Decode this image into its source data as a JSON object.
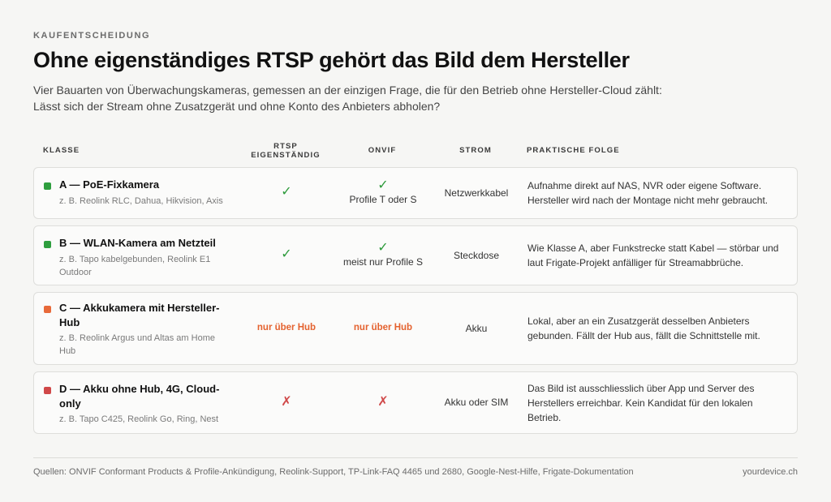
{
  "kicker": "KAUFENTSCHEIDUNG",
  "title": "Ohne eigenständiges RTSP gehört das Bild dem Hersteller",
  "subtitle": "Vier Bauarten von Überwachungskameras, gemessen an der einzigen Frage, die für den Betrieb ohne Hersteller-Cloud zählt: Lässt sich der Stream ohne Zusatzgerät und ohne Konto des Anbieters abholen?",
  "columns": {
    "klasse": "KLASSE",
    "rtsp": "RTSP EIGENSTÄNDIG",
    "onvif": "ONVIF",
    "strom": "STROM",
    "folge": "PRAKTISCHE FOLGE"
  },
  "rows": [
    {
      "status_color": "#2e9e3e",
      "title": "A — PoE-Fixkamera",
      "examples": "z. B. Reolink RLC, Dahua, Hikvision, Axis",
      "rtsp": "✓",
      "onvif": "✓",
      "onvif_note": "Profile T oder S",
      "strom": "Netzwerkkabel",
      "folge": "Aufnahme direkt auf NAS, NVR oder eigene Software. Hersteller wird nach der Montage nicht mehr gebraucht."
    },
    {
      "status_color": "#2e9e3e",
      "title": "B — WLAN-Kamera am Netzteil",
      "examples": "z. B. Tapo kabelgebunden, Reolink E1 Outdoor",
      "rtsp": "✓",
      "onvif": "✓",
      "onvif_note": "meist nur Profile S",
      "strom": "Steckdose",
      "folge": "Wie Klasse A, aber Funkstrecke statt Kabel — störbar und laut Frigate-Projekt anfälliger für Streamabbrüche."
    },
    {
      "status_color": "#e86a3a",
      "title": "C — Akkukamera mit Hersteller-Hub",
      "examples": "z. B. Reolink Argus und Altas am Home Hub",
      "rtsp": "nur über Hub",
      "onvif": "nur über Hub",
      "onvif_note": "",
      "strom": "Akku",
      "folge": "Lokal, aber an ein Zusatzgerät desselben Anbieters gebunden. Fällt der Hub aus, fällt die Schnittstelle mit."
    },
    {
      "status_color": "#d04848",
      "title": "D — Akku ohne Hub, 4G, Cloud-only",
      "examples": "z. B. Tapo C425, Reolink Go, Ring, Nest",
      "rtsp": "✗",
      "onvif": "✗",
      "onvif_note": "",
      "strom": "Akku oder SIM",
      "folge": "Das Bild ist ausschliesslich über App und Server des Herstellers erreichbar. Kein Kandidat für den lokalen Betrieb."
    }
  ],
  "footer": {
    "sources": "Quellen: ONVIF Conformant Products & Profile-Ankündigung, Reolink-Support, TP-Link-FAQ 4465 und 2680, Google-Nest-Hilfe, Frigate-Dokumentation",
    "brand": "yourdevice.ch"
  }
}
